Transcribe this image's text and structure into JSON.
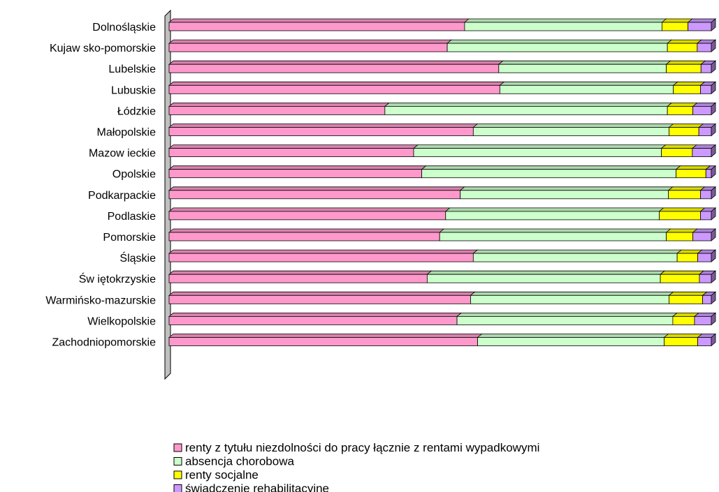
{
  "chart_data": {
    "type": "bar",
    "orientation": "horizontal",
    "stacked": "percent",
    "xlim": [
      0,
      100
    ],
    "grid": false,
    "legend_position": "bottom",
    "categories": [
      "Dolnośląskie",
      "Kujaw sko-pomorskie",
      "Lubelskie",
      "Lubuskie",
      "Łódzkie",
      "Małopolskie",
      "Mazow ieckie",
      "Opolskie",
      "Podkarpackie",
      "Podlaskie",
      "Pomorskie",
      "Śląskie",
      "Św iętokrzyskie",
      "Warmińsko-mazurskie",
      "Wielkopolskie",
      "Zachodniopomorskie"
    ],
    "series": [
      {
        "name": "renty z tytułu niezdolności do pracy łącznie z rentami wypadkowymi",
        "color": "#ff99cc",
        "values": [
          54.5,
          51.3,
          60.8,
          61.0,
          39.8,
          56.1,
          45.1,
          46.6,
          53.7,
          51.0,
          49.9,
          56.1,
          47.6,
          55.6,
          53.1,
          56.9
        ]
      },
      {
        "name": "absencja chorobowa",
        "color": "#ccffcc",
        "values": [
          36.4,
          40.6,
          30.9,
          32.0,
          52.1,
          36.1,
          45.7,
          46.9,
          38.4,
          39.4,
          41.8,
          37.6,
          43.0,
          36.6,
          39.8,
          34.4
        ]
      },
      {
        "name": "renty socjalne",
        "color": "#ffff00",
        "values": [
          4.8,
          5.5,
          6.4,
          5.0,
          4.7,
          5.5,
          5.7,
          5.5,
          5.9,
          7.6,
          4.9,
          3.8,
          7.2,
          6.2,
          4.0,
          6.2
        ]
      },
      {
        "name": "świadczenie rehabilitacyjne",
        "color": "#cc99ff",
        "values": [
          4.3,
          2.6,
          1.9,
          2.0,
          3.4,
          2.3,
          3.5,
          1.0,
          2.0,
          2.0,
          3.4,
          2.5,
          2.2,
          1.6,
          3.1,
          2.5
        ]
      }
    ]
  }
}
